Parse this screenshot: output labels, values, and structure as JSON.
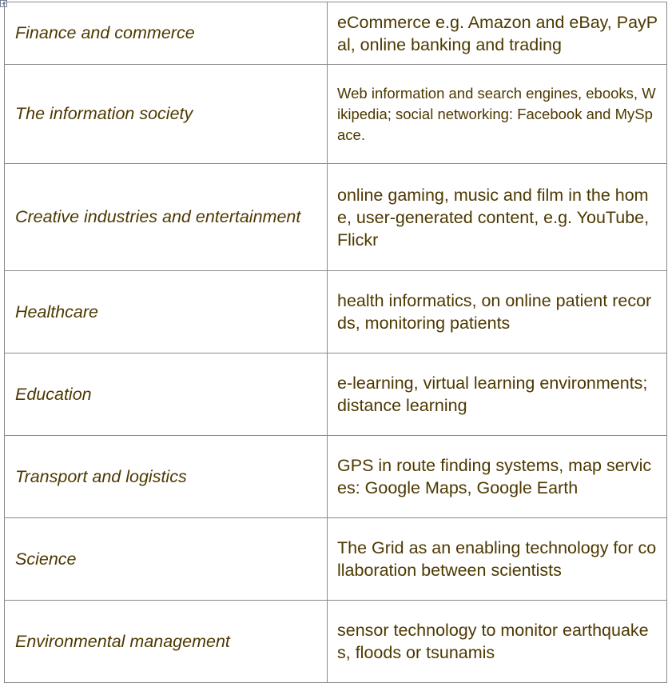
{
  "table": {
    "rows": [
      {
        "sector": "Finance and commerce",
        "examples": "eCommerce e.g. Amazon and eBay, PayPal,  online banking and trading"
      },
      {
        "sector": "The information society",
        "examples": "Web information and  search engines, ebooks, Wikipedia; social networking: Facebook and MySpace."
      },
      {
        "sector": "Creative industries and entertainment",
        "examples": "online gaming,  music and film in the home, user-generated content, e.g. YouTube, Flickr"
      },
      {
        "sector": "Healthcare",
        "examples": "health informatics, on online patient records, monitoring patients"
      },
      {
        "sector": "Education",
        "examples": "e-learning,  virtual learning environments; distance learning"
      },
      {
        "sector": "Transport and logistics",
        "examples": "GPS in route finding systems, map services: Google Maps, Google Earth"
      },
      {
        "sector": "Science",
        "examples": "The Grid as an enabling technology for collaboration between scientists"
      },
      {
        "sector": "Environmental management",
        "examples": "sensor technology to monitor  earthquakes, floods or tsunamis"
      }
    ]
  },
  "colors": {
    "text": "#4d3800",
    "border": "#8a8a8a"
  },
  "icons": {
    "table_handle": "move-cross-icon"
  }
}
